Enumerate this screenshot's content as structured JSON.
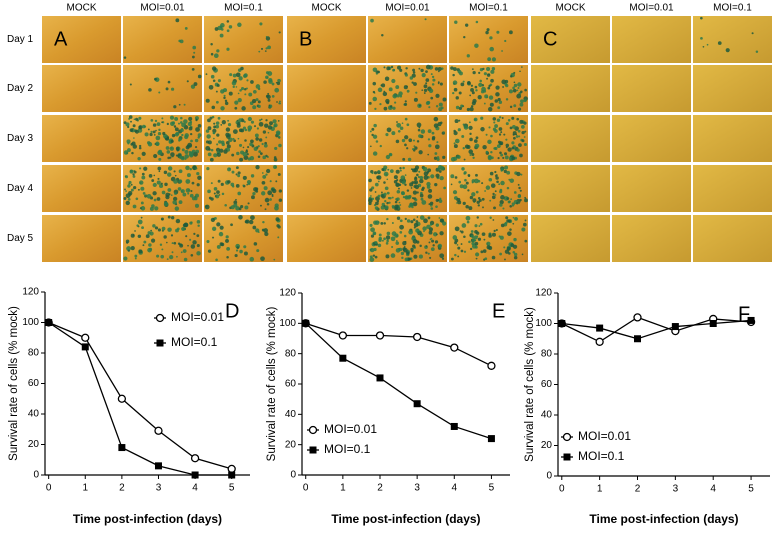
{
  "image_panels": {
    "row_labels": [
      "Day 1",
      "Day 2",
      "Day 3",
      "Day 4",
      "Day 5"
    ],
    "panels": [
      {
        "label": "A",
        "columns": [
          "MOCK",
          "MOI=0.01",
          "MOI=0.1"
        ]
      },
      {
        "label": "B",
        "columns": [
          "MOCK",
          "MOI=0.01",
          "MOI=0.1"
        ]
      },
      {
        "label": "C",
        "columns": [
          "MOCK",
          "MOI=0.01",
          "MOI=0.1"
        ]
      }
    ]
  },
  "chart_data": [
    {
      "type": "line",
      "annotation": "D",
      "xlabel": "Time post-infection (days)",
      "ylabel": "Survival rate of cells (% mock)",
      "legend": "right",
      "x": [
        0,
        1,
        2,
        3,
        4,
        5
      ],
      "xlim": [
        -0.1,
        5.5
      ],
      "ylim": [
        0,
        120
      ],
      "xticks": [
        0,
        1,
        2,
        3,
        4,
        5
      ],
      "yticks": [
        0,
        20,
        40,
        60,
        80,
        100,
        120
      ],
      "series": [
        {
          "name": "MOI=0.01",
          "color": "#000000",
          "marker": "circle",
          "values": [
            100,
            90,
            50,
            29,
            11,
            4
          ]
        },
        {
          "name": "MOI=0.1",
          "color": "#000000",
          "marker": "square",
          "values": [
            100,
            84,
            18,
            6,
            0,
            0
          ]
        }
      ]
    },
    {
      "type": "line",
      "annotation": "E",
      "xlabel": "Time post-infection (days)",
      "ylabel": "Survival rate of cells (% mock)",
      "legend": "lower left",
      "x": [
        0,
        1,
        2,
        3,
        4,
        5
      ],
      "xlim": [
        -0.1,
        5.5
      ],
      "ylim": [
        0,
        120
      ],
      "xticks": [
        0,
        1,
        2,
        3,
        4,
        5
      ],
      "yticks": [
        0,
        20,
        40,
        60,
        80,
        100,
        120
      ],
      "series": [
        {
          "name": "MOI=0.01",
          "color": "#000000",
          "marker": "circle",
          "values": [
            100,
            92,
            92,
            91,
            84,
            72
          ]
        },
        {
          "name": "MOI=0.1",
          "color": "#000000",
          "marker": "square",
          "values": [
            100,
            77,
            64,
            47,
            32,
            24
          ]
        }
      ]
    },
    {
      "type": "line",
      "annotation": "F",
      "xlabel": "Time post-infection (days)",
      "ylabel": "Survival rate of cells (% mock)",
      "legend": "lower left",
      "x": [
        0,
        1,
        2,
        3,
        4,
        5
      ],
      "xlim": [
        -0.1,
        5.5
      ],
      "ylim": [
        0,
        120
      ],
      "xticks": [
        0,
        1,
        2,
        3,
        4,
        5
      ],
      "yticks": [
        0,
        20,
        40,
        60,
        80,
        100,
        120
      ],
      "series": [
        {
          "name": "MOI=0.01",
          "color": "#000000",
          "marker": "circle",
          "values": [
            100,
            88,
            104,
            95,
            103,
            101
          ]
        },
        {
          "name": "MOI=0.1",
          "color": "#000000",
          "marker": "square",
          "values": [
            100,
            97,
            90,
            98,
            100,
            102
          ]
        }
      ]
    }
  ]
}
